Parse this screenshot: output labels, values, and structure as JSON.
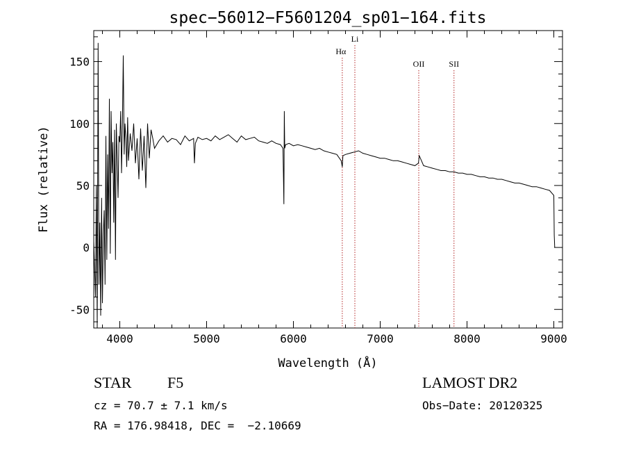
{
  "chart_data": {
    "type": "line",
    "title": "spec−56012−F5601204_sp01−164.fits",
    "xlabel": "Wavelength (Å)",
    "ylabel": "Flux (relative)",
    "xlim": [
      3700,
      9100
    ],
    "ylim": [
      -65,
      175
    ],
    "xticks": [
      4000,
      5000,
      6000,
      7000,
      8000,
      9000
    ],
    "yticks": [
      -50,
      0,
      50,
      100,
      150
    ],
    "grid": false,
    "line_color": "#000000",
    "marker_color": "#b22222",
    "reference_lines": [
      {
        "label": "Hα",
        "wavelength": 6563
      },
      {
        "label": "Li",
        "wavelength": 6708
      },
      {
        "label": "OII",
        "wavelength": 7444
      },
      {
        "label": "SII",
        "wavelength": 7850
      }
    ],
    "series": [
      {
        "x": [
          3700,
          3720,
          3730,
          3740,
          3750,
          3760,
          3770,
          3780,
          3790,
          3800,
          3810,
          3820,
          3830,
          3840,
          3850,
          3860,
          3870,
          3880,
          3890,
          3900,
          3910,
          3920,
          3930,
          3940,
          3950,
          3960,
          3970,
          3980,
          3990,
          4000,
          4010,
          4020,
          4030,
          4040,
          4050,
          4060,
          4070,
          4080,
          4090,
          4100,
          4120,
          4140,
          4160,
          4180,
          4200,
          4220,
          4240,
          4260,
          4280,
          4300,
          4320,
          4340,
          4360,
          4380,
          4400,
          4450,
          4500,
          4550,
          4600,
          4650,
          4700,
          4750,
          4800,
          4850,
          4860,
          4870,
          4900,
          4950,
          5000,
          5050,
          5100,
          5150,
          5200,
          5250,
          5300,
          5350,
          5400,
          5450,
          5500,
          5550,
          5600,
          5650,
          5700,
          5750,
          5800,
          5850,
          5880,
          5885,
          5890,
          5895,
          5900,
          5910,
          5950,
          6000,
          6050,
          6100,
          6150,
          6200,
          6250,
          6300,
          6350,
          6400,
          6450,
          6500,
          6550,
          6563,
          6570,
          6600,
          6650,
          6700,
          6750,
          6800,
          6850,
          6900,
          6950,
          7000,
          7050,
          7100,
          7150,
          7200,
          7250,
          7300,
          7350,
          7400,
          7440,
          7450,
          7500,
          7550,
          7600,
          7650,
          7700,
          7750,
          7800,
          7850,
          7900,
          7950,
          8000,
          8050,
          8100,
          8150,
          8200,
          8250,
          8300,
          8350,
          8400,
          8450,
          8500,
          8550,
          8600,
          8650,
          8700,
          8750,
          8800,
          8850,
          8900,
          8950,
          9000,
          9005,
          9010
        ],
        "y": [
          5,
          -40,
          50,
          -65,
          165,
          -30,
          20,
          -55,
          40,
          -45,
          10,
          30,
          -30,
          90,
          -10,
          75,
          15,
          120,
          -5,
          110,
          60,
          85,
          20,
          95,
          -10,
          100,
          70,
          40,
          90,
          85,
          110,
          60,
          100,
          155,
          75,
          100,
          88,
          65,
          105,
          70,
          92,
          78,
          100,
          68,
          88,
          55,
          96,
          62,
          90,
          48,
          100,
          72,
          95,
          88,
          80,
          86,
          90,
          85,
          88,
          87,
          83,
          90,
          86,
          88,
          68,
          84,
          89,
          87,
          88,
          86,
          90,
          87,
          89,
          91,
          88,
          85,
          90,
          87,
          88,
          89,
          86,
          85,
          84,
          86,
          84,
          83,
          80,
          60,
          35,
          110,
          80,
          83,
          84,
          82,
          83,
          82,
          81,
          80,
          79,
          80,
          78,
          77,
          76,
          75,
          70,
          65,
          74,
          75,
          76,
          77,
          78,
          76,
          75,
          74,
          73,
          72,
          72,
          71,
          70,
          70,
          69,
          68,
          67,
          66,
          68,
          74,
          66,
          65,
          64,
          63,
          62,
          62,
          61,
          61,
          60,
          60,
          59,
          59,
          58,
          57,
          57,
          56,
          56,
          55,
          55,
          54,
          53,
          52,
          52,
          51,
          50,
          49,
          49,
          48,
          47,
          46,
          42,
          10,
          0
        ]
      }
    ]
  },
  "info": {
    "object_class": "STAR",
    "subclass": "F5",
    "cz": "cz = 70.7 ± 7.1 km/s",
    "coords": "RA = 176.98418, DEC =  −2.10669",
    "survey": "LAMOST DR2",
    "obs_date": "Obs−Date: 20120325"
  }
}
